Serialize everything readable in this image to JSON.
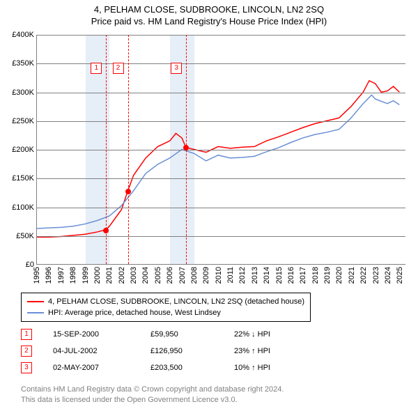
{
  "title": {
    "line1": "4, PELHAM CLOSE, SUDBROOKE, LINCOLN, LN2 2SQ",
    "line2": "Price paid vs. HM Land Registry's House Price Index (HPI)"
  },
  "chart": {
    "type": "line",
    "background_color": "#ffffff",
    "grid_color": "#808080",
    "highlight_band_color": "#e6eef7",
    "ylim": [
      0,
      400000
    ],
    "ytick_step": 50000,
    "yticks": [
      {
        "v": 0,
        "label": "£0"
      },
      {
        "v": 50000,
        "label": "£50K"
      },
      {
        "v": 100000,
        "label": "£100K"
      },
      {
        "v": 150000,
        "label": "£150K"
      },
      {
        "v": 200000,
        "label": "£200K"
      },
      {
        "v": 250000,
        "label": "£250K"
      },
      {
        "v": 300000,
        "label": "£300K"
      },
      {
        "v": 350000,
        "label": "£350K"
      },
      {
        "v": 400000,
        "label": "£400K"
      }
    ],
    "xlim": [
      1995,
      2025.5
    ],
    "xticks": [
      1995,
      1996,
      1997,
      1998,
      1999,
      2000,
      2001,
      2002,
      2003,
      2004,
      2005,
      2006,
      2007,
      2008,
      2009,
      2010,
      2011,
      2012,
      2013,
      2014,
      2015,
      2016,
      2017,
      2018,
      2019,
      2020,
      2021,
      2022,
      2023,
      2024,
      2025
    ],
    "highlight_bands": [
      {
        "start": 1999,
        "end": 2001
      },
      {
        "start": 2006,
        "end": 2008
      }
    ],
    "vertical_markers": [
      {
        "id": "1",
        "x": 2000.71,
        "badge_top_pct": 12
      },
      {
        "id": "2",
        "x": 2002.51,
        "badge_top_pct": 12
      },
      {
        "id": "3",
        "x": 2007.33,
        "badge_top_pct": 12
      }
    ],
    "series": [
      {
        "name": "subject",
        "label": "4, PELHAM CLOSE, SUDBROOKE, LINCOLN, LN2 2SQ (detached house)",
        "color": "#ff0000",
        "line_width": 1.5,
        "points": [
          [
            1995,
            47000
          ],
          [
            1996,
            47000
          ],
          [
            1997,
            48000
          ],
          [
            1998,
            50000
          ],
          [
            1999,
            52000
          ],
          [
            2000,
            56000
          ],
          [
            2000.71,
            59950
          ],
          [
            2001,
            66000
          ],
          [
            2002,
            95000
          ],
          [
            2002.51,
            126950
          ],
          [
            2003,
            155000
          ],
          [
            2004,
            185000
          ],
          [
            2005,
            205000
          ],
          [
            2006,
            215000
          ],
          [
            2006.5,
            228000
          ],
          [
            2007,
            220000
          ],
          [
            2007.33,
            203500
          ],
          [
            2008,
            200000
          ],
          [
            2009,
            195000
          ],
          [
            2010,
            205000
          ],
          [
            2011,
            202000
          ],
          [
            2012,
            204000
          ],
          [
            2013,
            205000
          ],
          [
            2014,
            215000
          ],
          [
            2015,
            222000
          ],
          [
            2016,
            230000
          ],
          [
            2017,
            238000
          ],
          [
            2018,
            245000
          ],
          [
            2019,
            250000
          ],
          [
            2020,
            255000
          ],
          [
            2021,
            275000
          ],
          [
            2022,
            300000
          ],
          [
            2022.5,
            320000
          ],
          [
            2023,
            315000
          ],
          [
            2023.5,
            300000
          ],
          [
            2024,
            302000
          ],
          [
            2024.5,
            310000
          ],
          [
            2025,
            300000
          ]
        ]
      },
      {
        "name": "hpi",
        "label": "HPI: Average price, detached house, West Lindsey",
        "color": "#6a8fd4",
        "line_width": 1.5,
        "points": [
          [
            1995,
            62000
          ],
          [
            1996,
            63000
          ],
          [
            1997,
            64000
          ],
          [
            1998,
            66000
          ],
          [
            1999,
            70000
          ],
          [
            2000,
            76000
          ],
          [
            2001,
            84000
          ],
          [
            2002,
            102000
          ],
          [
            2003,
            128000
          ],
          [
            2004,
            158000
          ],
          [
            2005,
            174000
          ],
          [
            2006,
            185000
          ],
          [
            2007,
            200000
          ],
          [
            2008,
            193000
          ],
          [
            2009,
            180000
          ],
          [
            2010,
            190000
          ],
          [
            2011,
            185000
          ],
          [
            2012,
            186000
          ],
          [
            2013,
            188000
          ],
          [
            2014,
            196000
          ],
          [
            2015,
            203000
          ],
          [
            2016,
            212000
          ],
          [
            2017,
            220000
          ],
          [
            2018,
            226000
          ],
          [
            2019,
            230000
          ],
          [
            2020,
            235000
          ],
          [
            2021,
            255000
          ],
          [
            2022,
            280000
          ],
          [
            2022.7,
            295000
          ],
          [
            2023,
            288000
          ],
          [
            2024,
            280000
          ],
          [
            2024.5,
            285000
          ],
          [
            2025,
            278000
          ]
        ]
      }
    ],
    "data_points": [
      {
        "x": 2000.71,
        "y": 59950
      },
      {
        "x": 2002.51,
        "y": 126950
      },
      {
        "x": 2007.33,
        "y": 203500
      }
    ]
  },
  "legend": {
    "items": [
      {
        "color": "#ff0000",
        "label_ref": "chart.series.0.label"
      },
      {
        "color": "#6a8fd4",
        "label_ref": "chart.series.1.label"
      }
    ]
  },
  "transactions": [
    {
      "id": "1",
      "date": "15-SEP-2000",
      "price": "£59,950",
      "delta": "22% ↓ HPI"
    },
    {
      "id": "2",
      "date": "04-JUL-2002",
      "price": "£126,950",
      "delta": "23% ↑ HPI"
    },
    {
      "id": "3",
      "date": "02-MAY-2007",
      "price": "£203,500",
      "delta": "10% ↑ HPI"
    }
  ],
  "attribution": {
    "line1": "Contains HM Land Registry data © Crown copyright and database right 2024.",
    "line2": "This data is licensed under the Open Government Licence v3.0."
  }
}
